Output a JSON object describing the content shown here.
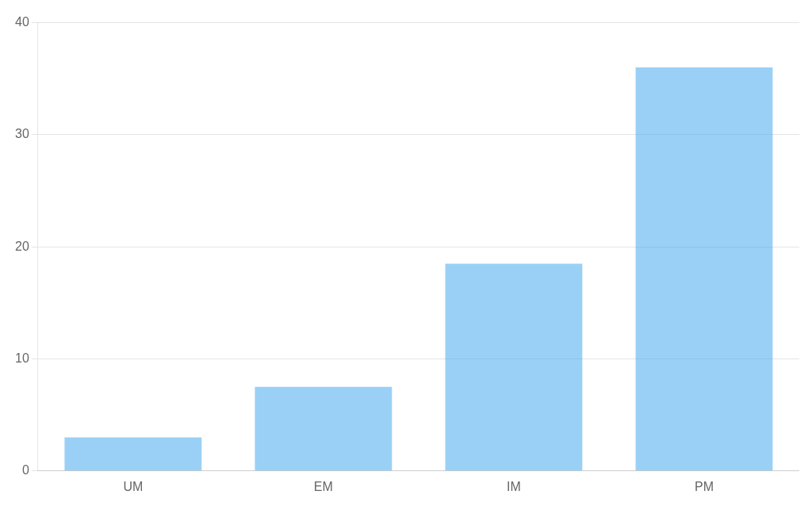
{
  "chart_data": {
    "type": "bar",
    "categories": [
      "UM",
      "EM",
      "IM",
      "PM"
    ],
    "values": [
      3.0,
      7.5,
      18.5,
      36.0
    ],
    "ylim": [
      0,
      40
    ],
    "yticks": [
      0,
      10,
      20,
      30,
      40
    ],
    "grid": true
  }
}
